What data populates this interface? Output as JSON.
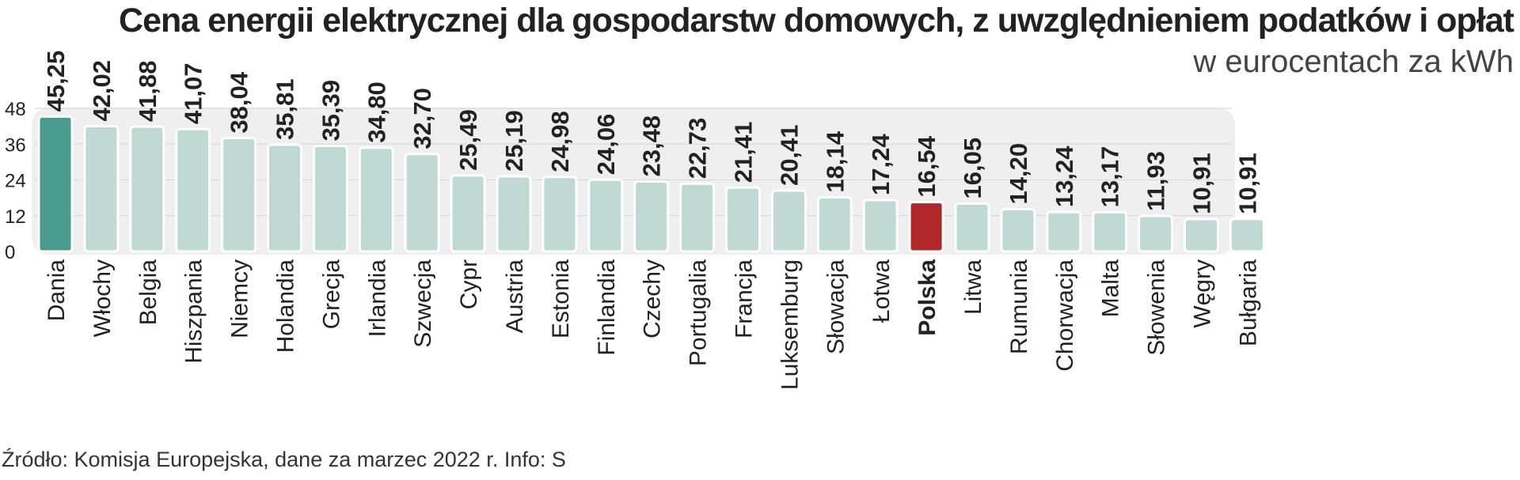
{
  "header": {
    "title": "Cena energii elektrycznej dla gospodarstw domowych, z uwzględnieniem podatków i opłat",
    "subtitle": "w eurocentach za kWh"
  },
  "footer": {
    "source": "Źródło: Komisja Europejska, dane za marzec 2022 r.   Info: S"
  },
  "colors": {
    "bar_default": "#c0dad3",
    "bar_first": "#4a9a8e",
    "bar_highlight": "#b0282a",
    "panel_bg": "#efefef",
    "text": "#222222"
  },
  "chart_data": {
    "type": "bar",
    "title": "Cena energii elektrycznej dla gospodarstw domowych, z uwzględnieniem podatków i opłat",
    "subtitle": "w eurocentach za kWh",
    "xlabel": "",
    "ylabel": "",
    "ylim": [
      0,
      48
    ],
    "yticks": [
      0,
      12,
      24,
      36,
      48
    ],
    "grid": true,
    "highlight": "Polska",
    "categories": [
      "Dania",
      "Włochy",
      "Belgia",
      "Hiszpania",
      "Niemcy",
      "Holandia",
      "Grecja",
      "Irlandia",
      "Szwecja",
      "Cypr",
      "Austria",
      "Estonia",
      "Finlandia",
      "Czechy",
      "Portugalia",
      "Francja",
      "Luksemburg",
      "Słowacja",
      "Łotwa",
      "Polska",
      "Litwa",
      "Rumunia",
      "Chorwacja",
      "Malta",
      "Słowenia",
      "Węgry",
      "Bułgaria"
    ],
    "values": [
      45.25,
      42.02,
      41.88,
      41.07,
      38.04,
      35.81,
      35.39,
      34.8,
      32.7,
      25.49,
      25.19,
      24.98,
      24.06,
      23.48,
      22.73,
      21.41,
      20.41,
      18.14,
      17.24,
      16.54,
      16.05,
      14.2,
      13.24,
      13.17,
      11.93,
      10.91,
      10.91
    ],
    "value_labels": [
      "45,25",
      "42,02",
      "41,88",
      "41,07",
      "38,04",
      "35,81",
      "35,39",
      "34,80",
      "32,70",
      "25,49",
      "25,19",
      "24,98",
      "24,06",
      "23,48",
      "22,73",
      "21,41",
      "20,41",
      "18,14",
      "17,24",
      "16,54",
      "16,05",
      "14,20",
      "13,24",
      "13,17",
      "11,93",
      "10,91",
      "10,91"
    ]
  }
}
